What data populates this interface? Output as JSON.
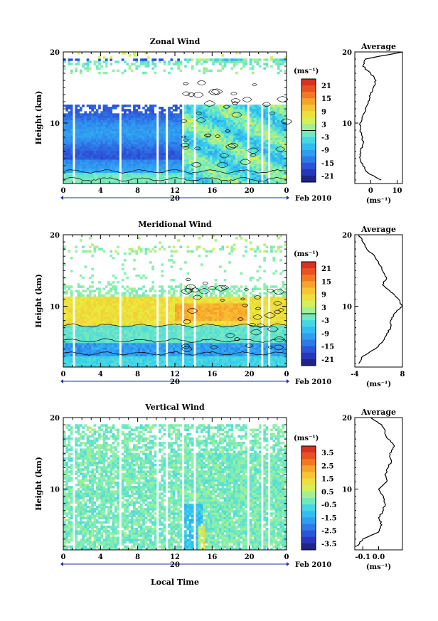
{
  "figure": {
    "xlabel": "Local Time",
    "date_label": "Feb 2010",
    "day_label": "20",
    "height_label": "Height (km)",
    "unit_label": "(ms⁻¹)",
    "average_title": "Average"
  },
  "chart_data": [
    {
      "type": "heatmap",
      "title": "Zonal Wind",
      "xlabel": "Local Time",
      "ylabel": "Height (km)",
      "x_ticks": [
        "0",
        "4",
        "8",
        "12",
        "16",
        "20",
        "0"
      ],
      "y_ticks": [
        "10",
        "20"
      ],
      "xlim": [
        0,
        24
      ],
      "ylim": [
        1.5,
        20
      ],
      "colorbar_ticks": [
        "21",
        "15",
        "9",
        "3",
        "-3",
        "-9",
        "-15",
        "-21"
      ],
      "colorbar_range": [
        -24,
        24
      ],
      "average_profile": {
        "xlim": [
          -6,
          12
        ],
        "x_ticks": [
          "0",
          "10"
        ],
        "y_ticks": [
          "10",
          "20"
        ],
        "xlabel": "(ms⁻¹)",
        "height_km": [
          2,
          3,
          4,
          5,
          6,
          7,
          8,
          9,
          10,
          11,
          12,
          13,
          14,
          15,
          16,
          17,
          18,
          19,
          20
        ],
        "values": [
          4,
          -1,
          -3,
          -4,
          -4,
          -3,
          -3,
          -4,
          -4,
          -3,
          -2,
          -1,
          0,
          1,
          2,
          0,
          -3,
          -2,
          12
        ]
      }
    },
    {
      "type": "heatmap",
      "title": "Meridional Wind",
      "xlabel": "Local Time",
      "ylabel": "Height (km)",
      "x_ticks": [
        "0",
        "4",
        "8",
        "12",
        "16",
        "20",
        "0"
      ],
      "y_ticks": [
        "10",
        "20"
      ],
      "xlim": [
        0,
        24
      ],
      "ylim": [
        1.5,
        20
      ],
      "colorbar_ticks": [
        "21",
        "15",
        "9",
        "3",
        "-3",
        "-9",
        "-15",
        "-21"
      ],
      "colorbar_range": [
        -24,
        24
      ],
      "average_profile": {
        "xlim": [
          -4,
          8
        ],
        "x_ticks": [
          "-4",
          "8"
        ],
        "y_ticks": [
          "10",
          "20"
        ],
        "xlabel": "(ms⁻¹)",
        "height_km": [
          2,
          3,
          4,
          5,
          6,
          7,
          8,
          9,
          10,
          11,
          12,
          13,
          14,
          15,
          16,
          17,
          18,
          19,
          20
        ],
        "values": [
          -3,
          -2,
          1,
          3,
          4,
          5,
          5,
          6,
          8,
          7,
          5,
          3,
          4,
          3,
          2,
          1,
          -1,
          -2,
          -3
        ]
      }
    },
    {
      "type": "heatmap",
      "title": "Vertical Wind",
      "xlabel": "Local Time",
      "ylabel": "Height (km)",
      "x_ticks": [
        "0",
        "4",
        "8",
        "12",
        "16",
        "20",
        "0"
      ],
      "y_ticks": [
        "10",
        "20"
      ],
      "xlim": [
        0,
        24
      ],
      "ylim": [
        1.5,
        20
      ],
      "colorbar_ticks": [
        "3.5",
        "2.5",
        "1.5",
        "0.5",
        "-0.5",
        "-1.5",
        "-2.5",
        "-3.5"
      ],
      "colorbar_range": [
        -4,
        4
      ],
      "average_profile": {
        "xlim": [
          -0.15,
          0.15
        ],
        "x_ticks": [
          "-0.1",
          "0.0"
        ],
        "y_ticks": [
          "10",
          "20"
        ],
        "xlabel": "(ms⁻¹)",
        "height_km": [
          2,
          3,
          4,
          5,
          6,
          7,
          8,
          9,
          10,
          11,
          12,
          13,
          14,
          15,
          16,
          17,
          18,
          19,
          20
        ],
        "values": [
          -0.14,
          -0.1,
          0.0,
          0.02,
          0.0,
          0.03,
          0.04,
          0.03,
          0.0,
          0.05,
          0.04,
          0.06,
          0.08,
          0.07,
          0.1,
          0.06,
          0.04,
          0.02,
          -0.05
        ]
      }
    }
  ]
}
